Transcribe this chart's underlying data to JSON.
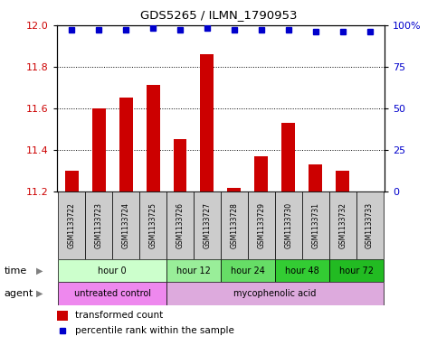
{
  "title": "GDS5265 / ILMN_1790953",
  "samples": [
    "GSM1133722",
    "GSM1133723",
    "GSM1133724",
    "GSM1133725",
    "GSM1133726",
    "GSM1133727",
    "GSM1133728",
    "GSM1133729",
    "GSM1133730",
    "GSM1133731",
    "GSM1133732",
    "GSM1133733"
  ],
  "bar_values": [
    11.3,
    11.6,
    11.65,
    11.71,
    11.45,
    11.86,
    11.22,
    11.37,
    11.53,
    11.33,
    11.3,
    11.2
  ],
  "percentile_values": [
    97,
    97,
    97,
    98,
    97,
    98,
    97,
    97,
    97,
    96,
    96,
    96
  ],
  "bar_color": "#cc0000",
  "dot_color": "#0000cc",
  "ymin": 11.2,
  "ymax": 12.0,
  "y_ticks": [
    11.2,
    11.4,
    11.6,
    11.8,
    12.0
  ],
  "y2min": 0,
  "y2max": 100,
  "y2_ticks": [
    0,
    25,
    50,
    75,
    100
  ],
  "y2_labels": [
    "0",
    "25",
    "50",
    "75",
    "100%"
  ],
  "time_groups": [
    {
      "label": "hour 0",
      "start": 0,
      "end": 3,
      "color": "#ccffcc"
    },
    {
      "label": "hour 12",
      "start": 4,
      "end": 5,
      "color": "#99ee99"
    },
    {
      "label": "hour 24",
      "start": 6,
      "end": 7,
      "color": "#66dd66"
    },
    {
      "label": "hour 48",
      "start": 8,
      "end": 9,
      "color": "#33cc33"
    },
    {
      "label": "hour 72",
      "start": 10,
      "end": 11,
      "color": "#22bb22"
    }
  ],
  "agent_groups": [
    {
      "label": "untreated control",
      "start": 0,
      "end": 3,
      "color": "#ee88ee"
    },
    {
      "label": "mycophenolic acid",
      "start": 4,
      "end": 11,
      "color": "#ddaadd"
    }
  ],
  "legend_bar_label": "transformed count",
  "legend_dot_label": "percentile rank within the sample",
  "time_label": "time",
  "agent_label": "agent",
  "sample_box_color": "#cccccc",
  "bar_width": 0.5
}
